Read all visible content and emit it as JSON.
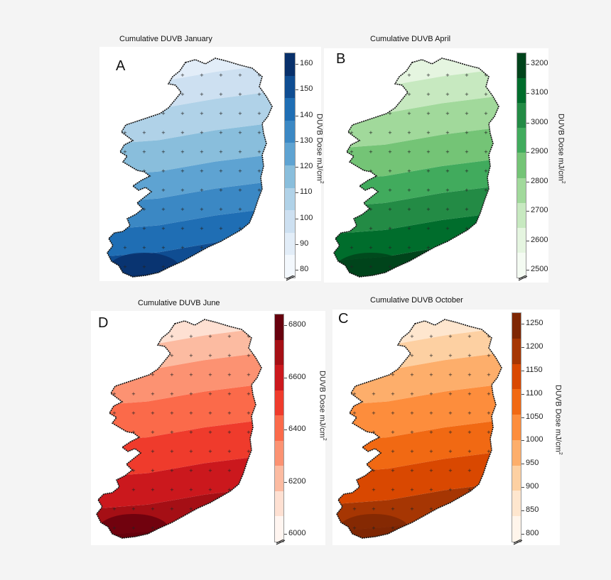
{
  "panels": [
    {
      "id": "A",
      "letter": "A",
      "title": "Cumulative  DUVB January",
      "axis_title": "DUVB Dose mJ/cm",
      "axis_sup": "2",
      "ticks": [
        "160",
        "150",
        "140",
        "130",
        "120",
        "110",
        "100",
        "90",
        "80"
      ],
      "colors": [
        "#08306b",
        "#0f4d92",
        "#1f6eb4",
        "#3b88c4",
        "#5ea3d2",
        "#89bedc",
        "#b0d2e8",
        "#cde0f1",
        "#e2edf8",
        "#f3f8fd"
      ]
    },
    {
      "id": "B",
      "letter": "B",
      "title": "Cumulative  DUVB April",
      "axis_title": "DUVB Dose mJ/cm",
      "axis_sup": "2",
      "ticks": [
        "3200",
        "3100",
        "3000",
        "2900",
        "2800",
        "2700",
        "2600",
        "2500"
      ],
      "colors": [
        "#00441b",
        "#006d2c",
        "#238b45",
        "#41ab5d",
        "#74c476",
        "#a1d99b",
        "#c7e9c0",
        "#e5f5e0",
        "#f4fbf2"
      ]
    },
    {
      "id": "D",
      "letter": "D",
      "title": "Cumulative  DUVB June",
      "axis_title": "DUVB Dose mJ/cm",
      "axis_sup": "2",
      "ticks": [
        "6800",
        "6600",
        "6400",
        "6200",
        "6000"
      ],
      "colors": [
        "#67000d",
        "#a50f15",
        "#cb181d",
        "#ef3b2c",
        "#fb6a4a",
        "#fc9272",
        "#fcbba1",
        "#fee0d2",
        "#fff5f0"
      ]
    },
    {
      "id": "C",
      "letter": "C",
      "title": "Cumulative  DUVB October",
      "axis_title": "DUVB Dose mJ/cm",
      "axis_sup": "2",
      "ticks": [
        "1250",
        "1200",
        "1150",
        "1100",
        "1050",
        "1000",
        "950",
        "900",
        "850",
        "800"
      ],
      "colors": [
        "#7f2704",
        "#a63603",
        "#d94801",
        "#f16913",
        "#fd8d3c",
        "#fdae6b",
        "#fdd0a2",
        "#fee6ce",
        "#fff5eb"
      ]
    }
  ]
}
